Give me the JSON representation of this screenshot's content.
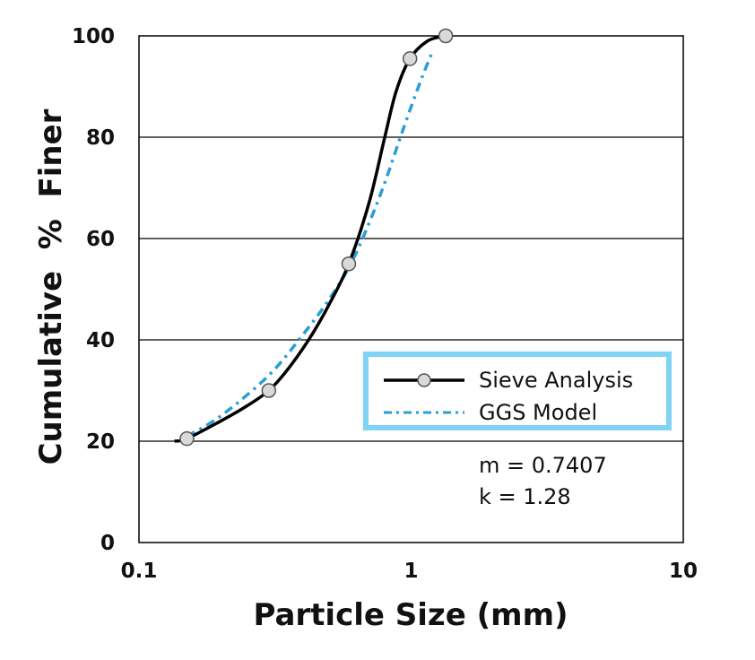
{
  "chart_data": {
    "type": "line",
    "xlabel": "Particle Size (mm)",
    "ylabel": "Cumulative  %  Finer",
    "xscale": "log",
    "xlim": [
      0.1,
      10
    ],
    "ylim": [
      0,
      100
    ],
    "x_ticks": [
      0.1,
      1,
      10
    ],
    "x_tick_labels": [
      "0.1",
      "1",
      "10"
    ],
    "y_ticks": [
      0,
      20,
      40,
      60,
      80,
      100
    ],
    "y_tick_labels": [
      "0",
      "20",
      "40",
      "60",
      "80",
      "100"
    ],
    "grid": "horizontal",
    "legend": {
      "position": "right-middle",
      "border_color": "#7fd3f3"
    },
    "series": [
      {
        "name": "Sieve Analysis",
        "style": "solid",
        "color": "#000000",
        "marker": "circle",
        "marker_color": "#d9d9d9",
        "markers": [
          {
            "x": 0.15,
            "y": 20.5
          },
          {
            "x": 0.3,
            "y": 30
          },
          {
            "x": 0.59,
            "y": 55
          },
          {
            "x": 0.99,
            "y": 95.5
          },
          {
            "x": 1.34,
            "y": 100
          }
        ],
        "curve": [
          {
            "x": 0.135,
            "y": 20
          },
          {
            "x": 0.15,
            "y": 20.5
          },
          {
            "x": 0.2,
            "y": 24
          },
          {
            "x": 0.25,
            "y": 27
          },
          {
            "x": 0.3,
            "y": 30
          },
          {
            "x": 0.35,
            "y": 34
          },
          {
            "x": 0.42,
            "y": 40
          },
          {
            "x": 0.5,
            "y": 47
          },
          {
            "x": 0.59,
            "y": 55
          },
          {
            "x": 0.7,
            "y": 67
          },
          {
            "x": 0.8,
            "y": 80
          },
          {
            "x": 0.88,
            "y": 89
          },
          {
            "x": 0.99,
            "y": 95.5
          },
          {
            "x": 1.15,
            "y": 99
          },
          {
            "x": 1.34,
            "y": 100
          }
        ]
      },
      {
        "name": "GGS Model",
        "style": "dash-dot",
        "color": "#2a9fd6",
        "curve": [
          {
            "x": 0.15,
            "y": 21
          },
          {
            "x": 0.2,
            "y": 25
          },
          {
            "x": 0.3,
            "y": 33
          },
          {
            "x": 0.4,
            "y": 41
          },
          {
            "x": 0.5,
            "y": 48
          },
          {
            "x": 0.6,
            "y": 55
          },
          {
            "x": 0.7,
            "y": 63
          },
          {
            "x": 0.8,
            "y": 71
          },
          {
            "x": 0.9,
            "y": 79
          },
          {
            "x": 1.0,
            "y": 86
          },
          {
            "x": 1.1,
            "y": 92
          },
          {
            "x": 1.2,
            "y": 97
          }
        ]
      }
    ],
    "annotations": [
      "m = 0.7407",
      "k = 1.28"
    ]
  }
}
